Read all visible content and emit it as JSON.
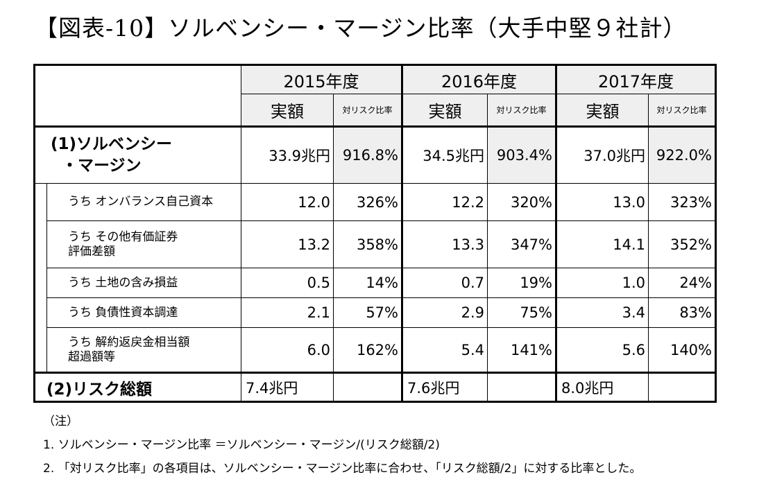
{
  "title": "【図表-10】ソルベンシー・マージン比率（大手中堅９社計）",
  "years": [
    "2015年度",
    "2016年度",
    "2017年度"
  ],
  "col_amount": "実額",
  "col_ratio": "対リスク比率",
  "sm": {
    "label_line1": "(1)ソルベンシー",
    "label_line2": "・マージン",
    "values": [
      "33.9兆円",
      "916.8%",
      "34.5兆円",
      "903.4%",
      "37.0兆円",
      "922.0%"
    ]
  },
  "rows": [
    {
      "label_line1": "うち オンバランス自己資本",
      "label_line2": "",
      "values": [
        "12.0",
        "326%",
        "12.2",
        "320%",
        "13.0",
        "323%"
      ]
    },
    {
      "label_line1": "うち その他有価証券",
      "label_line2": "評価差額",
      "values": [
        "13.2",
        "358%",
        "13.3",
        "347%",
        "14.1",
        "352%"
      ]
    },
    {
      "label_line1": "うち 土地の含み損益",
      "label_line2": "",
      "values": [
        "0.5",
        "14%",
        "0.7",
        "19%",
        "1.0",
        "24%"
      ]
    },
    {
      "label_line1": "うち 負債性資本調達",
      "label_line2": "",
      "values": [
        "2.1",
        "57%",
        "2.9",
        "75%",
        "3.4",
        "83%"
      ]
    },
    {
      "label_line1": "うち 解約返戻金相当額",
      "label_line2": "超過額等",
      "values": [
        "6.0",
        "162%",
        "5.4",
        "141%",
        "5.6",
        "140%"
      ]
    }
  ],
  "risk": {
    "label": "(2)リスク総額",
    "values": [
      "7.4兆円",
      "7.6兆円",
      "8.0兆円"
    ]
  },
  "notes": {
    "heading": "（注）",
    "line1": "1. ソルベンシー・マージン比率 ＝ソルベンシー・マージン/(リスク総額/2)",
    "line2": "2. 「対リスク比率」の各項目は、ソルベンシー・マージン比率に合わせ、「リスク総額/2」に対する比率とした。"
  }
}
